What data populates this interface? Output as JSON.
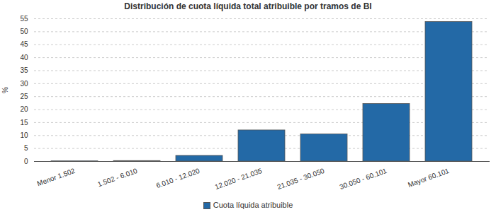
{
  "chart_data": {
    "type": "bar",
    "title": "Distribución de cuota líquida total atribuible por tramos de BI",
    "y_label": "%",
    "categories": [
      "Menor 1.502",
      "1.502 - 6.010",
      "6.010 - 12.020",
      "12.020 - 21.035",
      "21.035 - 30.050",
      "30.050 - 60.101",
      "Mayor 60.101"
    ],
    "series": [
      {
        "name": "Cuota líquida atribuible",
        "color": "#2369a6",
        "values": [
          0.1,
          0.2,
          2.2,
          12,
          10.5,
          22.2,
          53.8
        ]
      }
    ],
    "ylim": [
      0,
      55
    ],
    "yticks": [
      0,
      5,
      10,
      15,
      20,
      25,
      30,
      35,
      40,
      45,
      50,
      55
    ],
    "grid": true,
    "legend": "bottom"
  }
}
